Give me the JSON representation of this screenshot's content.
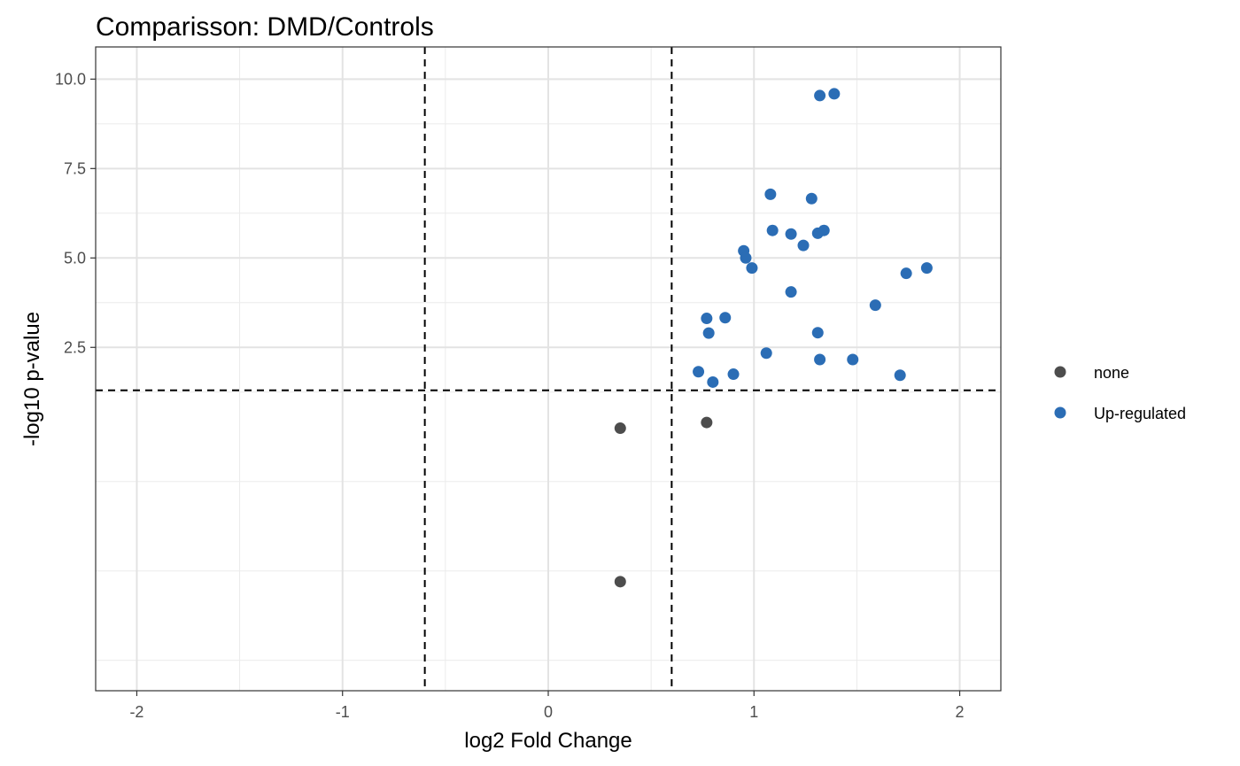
{
  "chart_data": {
    "type": "scatter",
    "title": "Comparisson: DMD/Controls",
    "xlabel": "log2 Fold Change",
    "ylabel": "-log10 p-value",
    "xlim": [
      -2.2,
      2.2
    ],
    "ylim": [
      -7.1,
      10.9
    ],
    "x_ticks": [
      -2,
      -1,
      0,
      1,
      2
    ],
    "x_tick_labels": [
      "-2",
      "-1",
      "0",
      "1",
      "2"
    ],
    "y_ticks": [
      2.5,
      5.0,
      7.5,
      10.0
    ],
    "y_tick_labels": [
      "2.5",
      "5.0",
      "7.5",
      "10.0"
    ],
    "y_scale_note": "axis compressed below 2.5",
    "grid": true,
    "thresholds": {
      "x": [
        -0.6,
        0.6
      ],
      "y": 1.3
    },
    "legend_position": "right",
    "series": [
      {
        "name": "none",
        "color": "#4d4d4d",
        "points": [
          [
            0.35,
            0.24
          ],
          [
            0.77,
            0.4
          ],
          [
            0.35,
            -4.05
          ]
        ]
      },
      {
        "name": "Up-regulated",
        "color": "#2b6db5",
        "points": [
          [
            1.32,
            9.54
          ],
          [
            1.39,
            9.59
          ],
          [
            1.08,
            6.78
          ],
          [
            1.28,
            6.66
          ],
          [
            1.09,
            5.77
          ],
          [
            1.18,
            5.67
          ],
          [
            1.31,
            5.69
          ],
          [
            1.34,
            5.77
          ],
          [
            1.24,
            5.35
          ],
          [
            0.95,
            5.2
          ],
          [
            0.96,
            5.0
          ],
          [
            0.99,
            4.72
          ],
          [
            1.18,
            4.05
          ],
          [
            1.74,
            4.57
          ],
          [
            1.84,
            4.72
          ],
          [
            1.59,
            3.68
          ],
          [
            0.77,
            3.31
          ],
          [
            0.86,
            3.33
          ],
          [
            0.78,
            2.9
          ],
          [
            1.31,
            2.91
          ],
          [
            1.06,
            2.34
          ],
          [
            1.32,
            2.16
          ],
          [
            1.48,
            2.16
          ],
          [
            0.73,
            1.82
          ],
          [
            1.71,
            1.72
          ],
          [
            0.9,
            1.75
          ],
          [
            0.8,
            1.53
          ]
        ]
      }
    ]
  }
}
